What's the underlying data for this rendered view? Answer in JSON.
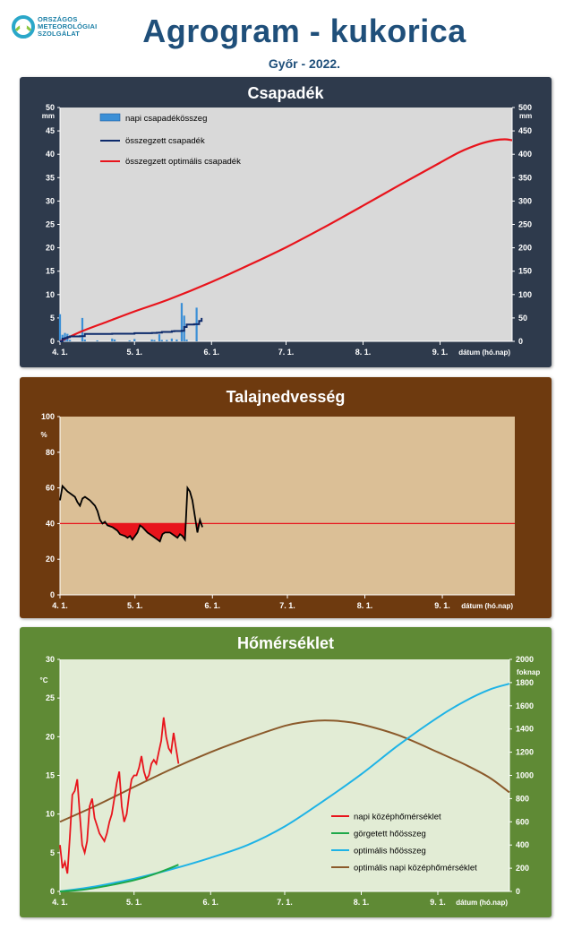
{
  "header": {
    "logo_text": [
      "ORSZÁGOS",
      "METEOROLÓGIAI",
      "SZOLGÁLAT"
    ],
    "title": "Agrogram - kukorica",
    "subtitle": "Győr - 2022."
  },
  "colors": {
    "precip_panel": "#2e3a4c",
    "soil_panel": "#6e3a0f",
    "temp_panel": "#5f8a35",
    "daily_precip": "#3b8fd6",
    "cum_precip": "#0d2a6b",
    "optimal_red": "#e8141c",
    "soil_fill": "#dbbf96",
    "temp_fill": "#e2ecd5",
    "gdd_green": "#1ea84a",
    "optimal_blue": "#1eb3e6",
    "optimal_brown": "#8b5a2b"
  },
  "chart_data": [
    {
      "type": "bar",
      "title": "Csapadék",
      "xlabel": "dátum (hó.nap)",
      "ylabel": "mm",
      "y2label": "mm",
      "x_range": [
        1,
        183
      ],
      "xticks": [
        {
          "day": 1,
          "label": "4. 1."
        },
        {
          "day": 31,
          "label": "5. 1."
        },
        {
          "day": 62,
          "label": "6. 1."
        },
        {
          "day": 92,
          "label": "7. 1."
        },
        {
          "day": 123,
          "label": "8. 1."
        },
        {
          "day": 154,
          "label": "9. 1."
        }
      ],
      "ylim": [
        0,
        50
      ],
      "y2lim": [
        0,
        500
      ],
      "yticks": [
        0,
        5,
        10,
        15,
        20,
        25,
        30,
        35,
        40,
        45,
        50
      ],
      "y2ticks": [
        0,
        50,
        100,
        150,
        200,
        250,
        300,
        350,
        400,
        450,
        500
      ],
      "legend": [
        "napi csapadékösszeg",
        "összegzett csapadék",
        "összegzett optimális csapadék"
      ],
      "legend_position": "top-left",
      "daily_precip": [
        [
          1,
          5.8
        ],
        [
          2,
          1.4
        ],
        [
          3,
          1.8
        ],
        [
          4,
          1.6
        ],
        [
          5,
          0.3
        ],
        [
          10,
          5.0
        ],
        [
          11,
          0.4
        ],
        [
          16,
          0.2
        ],
        [
          22,
          0.6
        ],
        [
          23,
          0.4
        ],
        [
          29,
          0.2
        ],
        [
          31,
          0.5
        ],
        [
          38,
          0.4
        ],
        [
          39,
          0.3
        ],
        [
          41,
          1.5
        ],
        [
          42,
          0.3
        ],
        [
          44,
          0.3
        ],
        [
          46,
          0.6
        ],
        [
          48,
          0.4
        ],
        [
          50,
          8.2
        ],
        [
          51,
          5.5
        ],
        [
          52,
          0.4
        ],
        [
          56,
          7.2
        ]
      ],
      "cumulative_precip": [
        [
          1,
          0.0
        ],
        [
          2,
          5.8
        ],
        [
          3,
          7.2
        ],
        [
          4,
          9.0
        ],
        [
          5,
          10.6
        ],
        [
          9,
          10.9
        ],
        [
          10,
          10.9
        ],
        [
          11,
          15.9
        ],
        [
          22,
          16.3
        ],
        [
          31,
          17.5
        ],
        [
          38,
          18.0
        ],
        [
          40,
          18.4
        ],
        [
          41,
          18.7
        ],
        [
          42,
          20.2
        ],
        [
          46,
          21.4
        ],
        [
          47,
          22.0
        ],
        [
          50,
          22.4
        ],
        [
          51,
          30.6
        ],
        [
          52,
          36.1
        ],
        [
          55,
          36.5
        ],
        [
          56,
          36.5
        ],
        [
          57,
          43.7
        ],
        [
          58,
          50.0
        ]
      ],
      "optimal_cumulative": [
        [
          1,
          0
        ],
        [
          10,
          22
        ],
        [
          20,
          42
        ],
        [
          31,
          64
        ],
        [
          45,
          90
        ],
        [
          62,
          127
        ],
        [
          77,
          163
        ],
        [
          92,
          201
        ],
        [
          107,
          243
        ],
        [
          123,
          290
        ],
        [
          138,
          335
        ],
        [
          154,
          382
        ],
        [
          162,
          405
        ],
        [
          170,
          422
        ],
        [
          176,
          430
        ],
        [
          180,
          432
        ],
        [
          183,
          430
        ]
      ],
      "y_axis_usage": "daily_precip on left axis (0-50 mm), cumulative series on right axis (0-500 mm)"
    },
    {
      "type": "area",
      "title": "Talajnedvesség",
      "xlabel": "dátum (hó.nap)",
      "ylabel": "%",
      "x_range": [
        1,
        183
      ],
      "xticks": [
        {
          "day": 1,
          "label": "4. 1."
        },
        {
          "day": 31,
          "label": "5. 1."
        },
        {
          "day": 62,
          "label": "6. 1."
        },
        {
          "day": 92,
          "label": "7. 1."
        },
        {
          "day": 123,
          "label": "8. 1."
        },
        {
          "day": 154,
          "label": "9. 1."
        }
      ],
      "ylim": [
        0,
        100
      ],
      "yticks": [
        0,
        20,
        40,
        60,
        80,
        100
      ],
      "threshold": 40,
      "soil_moisture": [
        [
          1,
          53
        ],
        [
          2,
          61
        ],
        [
          4,
          58
        ],
        [
          6,
          56
        ],
        [
          7,
          55
        ],
        [
          8,
          52
        ],
        [
          9,
          50
        ],
        [
          10,
          54
        ],
        [
          11,
          55
        ],
        [
          13,
          53
        ],
        [
          15,
          50
        ],
        [
          16,
          47
        ],
        [
          17,
          42
        ],
        [
          18,
          40
        ],
        [
          19,
          41
        ],
        [
          20,
          39
        ],
        [
          22,
          38
        ],
        [
          24,
          36
        ],
        [
          25,
          34
        ],
        [
          27,
          33
        ],
        [
          28,
          32
        ],
        [
          29,
          33
        ],
        [
          30,
          31
        ],
        [
          32,
          35
        ],
        [
          33,
          39
        ],
        [
          34,
          38
        ],
        [
          36,
          35
        ],
        [
          38,
          33
        ],
        [
          39,
          32
        ],
        [
          40,
          31
        ],
        [
          41,
          30
        ],
        [
          42,
          34
        ],
        [
          43,
          35
        ],
        [
          45,
          35
        ],
        [
          47,
          33
        ],
        [
          48,
          32
        ],
        [
          49,
          34
        ],
        [
          50,
          33
        ],
        [
          51,
          31
        ],
        [
          52,
          60
        ],
        [
          53,
          58
        ],
        [
          54,
          53
        ],
        [
          55,
          44
        ],
        [
          56,
          35
        ],
        [
          57,
          42
        ],
        [
          58,
          38
        ]
      ]
    },
    {
      "type": "line",
      "title": "Hőmérséklet",
      "xlabel": "dátum (hó.nap)",
      "ylabel": "°C",
      "y2label": "foknap",
      "x_range": [
        1,
        183
      ],
      "xticks": [
        {
          "day": 1,
          "label": "4. 1."
        },
        {
          "day": 31,
          "label": "5. 1."
        },
        {
          "day": 62,
          "label": "6. 1."
        },
        {
          "day": 92,
          "label": "7. 1."
        },
        {
          "day": 123,
          "label": "8. 1."
        },
        {
          "day": 154,
          "label": "9. 1."
        }
      ],
      "ylim": [
        0,
        30
      ],
      "y2lim": [
        0,
        2000
      ],
      "yticks": [
        0,
        5,
        10,
        15,
        20,
        25,
        30
      ],
      "y2ticks": [
        0,
        200,
        400,
        600,
        800,
        1000,
        1200,
        1400,
        1600,
        1800,
        2000
      ],
      "legend": [
        "napi középhőmérséklet",
        "görgetett hőösszeg",
        "optimális hőösszeg",
        "optimális napi középhőmérséklet"
      ],
      "legend_position": "bottom-right",
      "daily_mean_temp": [
        [
          1,
          6.0
        ],
        [
          2,
          3.0
        ],
        [
          3,
          3.8
        ],
        [
          4,
          2.3
        ],
        [
          5,
          7.0
        ],
        [
          6,
          12.5
        ],
        [
          7,
          13.0
        ],
        [
          8,
          14.5
        ],
        [
          9,
          10.0
        ],
        [
          10,
          6.0
        ],
        [
          11,
          5.0
        ],
        [
          12,
          6.5
        ],
        [
          13,
          11.0
        ],
        [
          14,
          12.0
        ],
        [
          15,
          9.5
        ],
        [
          16,
          8.5
        ],
        [
          17,
          7.5
        ],
        [
          18,
          7.0
        ],
        [
          19,
          6.5
        ],
        [
          20,
          7.5
        ],
        [
          21,
          9.0
        ],
        [
          22,
          10.0
        ],
        [
          23,
          12.0
        ],
        [
          24,
          14.0
        ],
        [
          25,
          15.5
        ],
        [
          26,
          11.0
        ],
        [
          27,
          9.0
        ],
        [
          28,
          10.0
        ],
        [
          29,
          12.5
        ],
        [
          30,
          14.5
        ],
        [
          31,
          15.0
        ],
        [
          32,
          15.0
        ],
        [
          33,
          16.0
        ],
        [
          34,
          17.5
        ],
        [
          35,
          15.5
        ],
        [
          36,
          14.5
        ],
        [
          37,
          15.0
        ],
        [
          38,
          16.5
        ],
        [
          39,
          17.0
        ],
        [
          40,
          16.5
        ],
        [
          41,
          18.0
        ],
        [
          42,
          19.5
        ],
        [
          43,
          22.5
        ],
        [
          44,
          20.0
        ],
        [
          45,
          18.5
        ],
        [
          46,
          18.0
        ],
        [
          47,
          20.5
        ],
        [
          48,
          18.5
        ],
        [
          49,
          16.5
        ]
      ],
      "rolling_heat_sum_gdd": [
        [
          1,
          0
        ],
        [
          10,
          14
        ],
        [
          20,
          48
        ],
        [
          30,
          92
        ],
        [
          35,
          120
        ],
        [
          40,
          155
        ],
        [
          45,
          195
        ],
        [
          49,
          230
        ]
      ],
      "optimal_heat_sum_gdd": [
        [
          1,
          0
        ],
        [
          15,
          42
        ],
        [
          31,
          110
        ],
        [
          46,
          190
        ],
        [
          62,
          290
        ],
        [
          77,
          400
        ],
        [
          92,
          560
        ],
        [
          107,
          770
        ],
        [
          123,
          1010
        ],
        [
          138,
          1260
        ],
        [
          154,
          1500
        ],
        [
          165,
          1640
        ],
        [
          175,
          1740
        ],
        [
          183,
          1790
        ]
      ],
      "optimal_daily_temp": [
        [
          1,
          9.0
        ],
        [
          15,
          11.0
        ],
        [
          31,
          13.5
        ],
        [
          46,
          15.8
        ],
        [
          62,
          18.0
        ],
        [
          77,
          19.8
        ],
        [
          92,
          21.4
        ],
        [
          100,
          21.9
        ],
        [
          107,
          22.1
        ],
        [
          115,
          22.0
        ],
        [
          123,
          21.6
        ],
        [
          138,
          20.2
        ],
        [
          154,
          18.0
        ],
        [
          165,
          16.4
        ],
        [
          175,
          14.7
        ],
        [
          183,
          12.8
        ]
      ]
    }
  ]
}
